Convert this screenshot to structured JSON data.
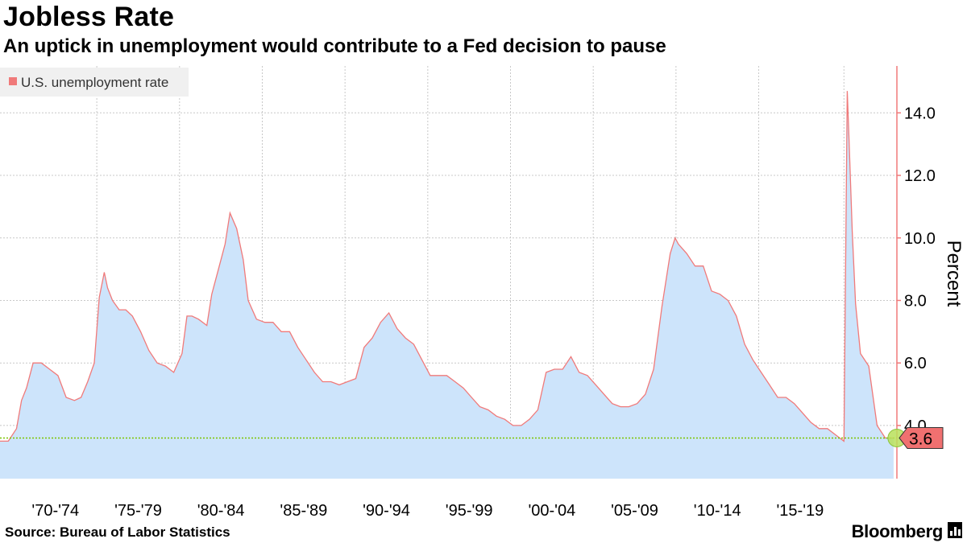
{
  "title": "Jobless Rate",
  "subtitle": "An uptick in unemployment would contribute to a Fed decision to pause",
  "source": "Source: Bureau of Labor Statistics",
  "brand": "Bloomberg",
  "chart_data": {
    "type": "area",
    "title": "Jobless Rate",
    "subtitle": "An uptick in unemployment would contribute to a Fed decision to pause",
    "ylabel": "Percent",
    "ylim": [
      2.3,
      15.5
    ],
    "y_ticks": [
      4.0,
      6.0,
      8.0,
      10.0,
      12.0,
      14.0
    ],
    "y_tick_labels": [
      "4.0",
      "6.0",
      "8.0",
      "10.0",
      "12.0",
      "14.0"
    ],
    "x_range": [
      1969.0,
      2023.2
    ],
    "x_ticks": [
      1970,
      1975,
      1980,
      1985,
      1990,
      1995,
      2000,
      2005,
      2010,
      2015
    ],
    "x_tick_labels": [
      "'70-'74",
      "'75-'79",
      "'80-'84",
      "'85-'89",
      "'90-'94",
      "'95-'99",
      "'00-'04",
      "'05-'09",
      "'10-'14",
      "'15-'19"
    ],
    "grid": true,
    "legend": {
      "position": "top-left",
      "entries": [
        "U.S. unemployment rate"
      ]
    },
    "colors": {
      "line": "#f07a7a",
      "fill": "#cde4fb",
      "reference": "#7cc400",
      "marker": "#b8e05a",
      "last_label_bg": "#f07070"
    },
    "reference_line": {
      "value": 3.6
    },
    "last_value_label": "3.6",
    "series": [
      {
        "name": "U.S. unemployment rate",
        "x": [
          1969.0,
          1969.5,
          1970.0,
          1970.3,
          1970.6,
          1971.0,
          1971.5,
          1972.0,
          1972.5,
          1973.0,
          1973.5,
          1973.9,
          1974.3,
          1974.7,
          1975.0,
          1975.3,
          1975.5,
          1975.8,
          1976.2,
          1976.6,
          1977.0,
          1977.5,
          1978.0,
          1978.5,
          1979.0,
          1979.5,
          1980.0,
          1980.3,
          1980.6,
          1981.0,
          1981.5,
          1981.8,
          1982.2,
          1982.6,
          1982.9,
          1983.3,
          1983.7,
          1984.0,
          1984.5,
          1985.0,
          1985.5,
          1986.0,
          1986.5,
          1987.0,
          1987.5,
          1988.0,
          1988.5,
          1989.0,
          1989.5,
          1990.0,
          1990.5,
          1991.0,
          1991.5,
          1992.0,
          1992.5,
          1993.0,
          1993.5,
          1994.0,
          1994.5,
          1995.0,
          1995.5,
          1996.0,
          1996.5,
          1997.0,
          1997.5,
          1998.0,
          1998.5,
          1999.0,
          1999.5,
          2000.0,
          2000.5,
          2001.0,
          2001.5,
          2002.0,
          2002.5,
          2003.0,
          2003.5,
          2004.0,
          2004.5,
          2005.0,
          2005.5,
          2006.0,
          2006.5,
          2007.0,
          2007.5,
          2008.0,
          2008.5,
          2009.0,
          2009.5,
          2009.8,
          2010.0,
          2010.5,
          2011.0,
          2011.5,
          2012.0,
          2012.5,
          2013.0,
          2013.5,
          2014.0,
          2014.5,
          2015.0,
          2015.5,
          2016.0,
          2016.5,
          2017.0,
          2017.5,
          2018.0,
          2018.5,
          2019.0,
          2019.5,
          2020.0,
          2020.2,
          2020.3,
          2020.5,
          2020.7,
          2021.0,
          2021.5,
          2022.0,
          2022.5,
          2023.0
        ],
        "values": [
          3.5,
          3.5,
          3.9,
          4.8,
          5.2,
          6.0,
          6.0,
          5.8,
          5.6,
          4.9,
          4.8,
          4.9,
          5.4,
          6.0,
          8.1,
          8.9,
          8.4,
          8.0,
          7.7,
          7.7,
          7.5,
          7.0,
          6.4,
          6.0,
          5.9,
          5.7,
          6.3,
          7.5,
          7.5,
          7.4,
          7.2,
          8.2,
          9.0,
          9.8,
          10.8,
          10.3,
          9.3,
          8.0,
          7.4,
          7.3,
          7.3,
          7.0,
          7.0,
          6.5,
          6.1,
          5.7,
          5.4,
          5.4,
          5.3,
          5.4,
          5.5,
          6.5,
          6.8,
          7.3,
          7.6,
          7.1,
          6.8,
          6.6,
          6.1,
          5.6,
          5.6,
          5.6,
          5.4,
          5.2,
          4.9,
          4.6,
          4.5,
          4.3,
          4.2,
          4.0,
          4.0,
          4.2,
          4.5,
          5.7,
          5.8,
          5.8,
          6.2,
          5.7,
          5.6,
          5.3,
          5.0,
          4.7,
          4.6,
          4.6,
          4.7,
          5.0,
          5.8,
          7.8,
          9.5,
          10.0,
          9.8,
          9.5,
          9.1,
          9.1,
          8.3,
          8.2,
          8.0,
          7.5,
          6.6,
          6.1,
          5.7,
          5.3,
          4.9,
          4.9,
          4.7,
          4.4,
          4.1,
          3.9,
          3.9,
          3.7,
          3.5,
          14.7,
          13.3,
          10.2,
          7.9,
          6.3,
          5.9,
          4.0,
          3.6,
          3.6
        ]
      }
    ]
  }
}
